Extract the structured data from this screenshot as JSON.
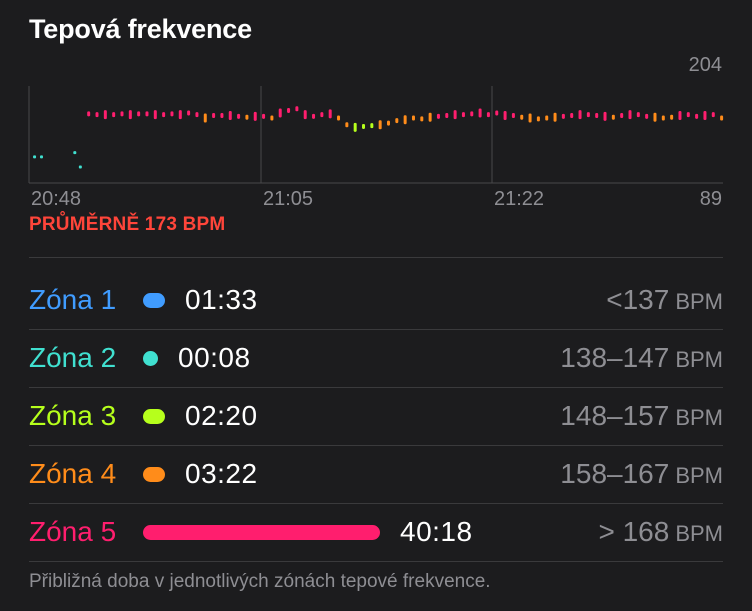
{
  "title": "Tepová frekvence",
  "average_text": "PRŮMĚRNĚ 173 BPM",
  "colors": {
    "background": "#1c1c1e",
    "average": "#ff453a",
    "zone1": "#409cff",
    "zone2": "#40e0d0",
    "zone3": "#b6ff1c",
    "zone4": "#ff8c1a",
    "zone5": "#ff1e6e"
  },
  "chart_data": {
    "type": "scatter",
    "y_max_label": "204",
    "y_min_label": "89",
    "ylim": [
      89,
      204
    ],
    "x_tick_labels": [
      "20:48",
      "21:05",
      "21:22"
    ],
    "x_unit": "minutes",
    "xlim": [
      0,
      50
    ],
    "x": [
      0.4,
      0.9,
      3.3,
      3.7,
      4.3,
      4.9,
      5.5,
      6.1,
      6.7,
      7.3,
      7.9,
      8.5,
      9.1,
      9.7,
      10.3,
      10.9,
      11.5,
      12.1,
      12.7,
      13.3,
      13.9,
      14.5,
      15.1,
      15.7,
      16.3,
      16.9,
      17.5,
      18.1,
      18.7,
      19.3,
      19.9,
      20.5,
      21.1,
      21.7,
      22.3,
      22.9,
      23.5,
      24.1,
      24.7,
      25.3,
      25.9,
      26.5,
      27.1,
      27.7,
      28.3,
      28.9,
      29.5,
      30.1,
      30.7,
      31.3,
      31.9,
      32.5,
      33.1,
      33.7,
      34.3,
      34.9,
      35.5,
      36.1,
      36.7,
      37.3,
      37.9,
      38.5,
      39.1,
      39.7,
      40.3,
      40.9,
      41.5,
      42.1,
      42.7,
      43.3,
      43.9,
      44.5,
      45.1,
      45.7,
      46.3,
      46.9,
      47.5,
      48.1,
      48.7,
      49.3,
      49.9
    ],
    "y": [
      120,
      120,
      125,
      108,
      171,
      170,
      170,
      170,
      171,
      170,
      171,
      171,
      170,
      170,
      171,
      170,
      172,
      170,
      166,
      169,
      169,
      169,
      168,
      167,
      168,
      168,
      166,
      172,
      175,
      177,
      170,
      168,
      170,
      171,
      166,
      158,
      155,
      156,
      157,
      158,
      160,
      163,
      164,
      166,
      165,
      167,
      168,
      169,
      170,
      170,
      171,
      172,
      170,
      172,
      169,
      169,
      167,
      166,
      165,
      166,
      167,
      168,
      169,
      170,
      170,
      169,
      168,
      167,
      169,
      170,
      170,
      168,
      167,
      166,
      167,
      169,
      170,
      168,
      169,
      170,
      166
    ]
  },
  "zones": [
    {
      "label": "Zóna 1",
      "time": "01:33",
      "range": "<137",
      "unit": "BPM",
      "seconds": 93
    },
    {
      "label": "Zóna 2",
      "time": "00:08",
      "range": "138–147",
      "unit": "BPM",
      "seconds": 8
    },
    {
      "label": "Zóna 3",
      "time": "02:20",
      "range": "148–157",
      "unit": "BPM",
      "seconds": 140
    },
    {
      "label": "Zóna 4",
      "time": "03:22",
      "range": "158–167",
      "unit": "BPM",
      "seconds": 202
    },
    {
      "label": "Zóna 5",
      "time": "40:18",
      "range": "> 168",
      "unit": "BPM",
      "seconds": 2418
    }
  ],
  "footnote": "Přibližná doba v jednotlivých zónách tepové frekvence."
}
